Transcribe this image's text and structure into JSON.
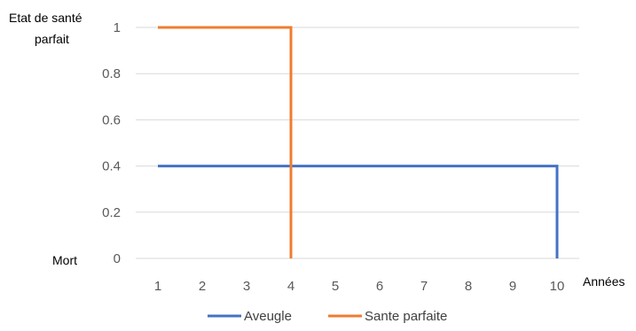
{
  "chart_data": {
    "type": "line",
    "step": true,
    "x": [
      1,
      2,
      3,
      4,
      5,
      6,
      7,
      8,
      9,
      10
    ],
    "x_tick_labels": [
      "1",
      "2",
      "3",
      "4",
      "5",
      "6",
      "7",
      "8",
      "9",
      "10"
    ],
    "y_tick_labels": [
      "0",
      "0.2",
      "0.4",
      "0.6",
      "0.8",
      "1"
    ],
    "y_ticks": [
      0,
      0.2,
      0.4,
      0.6,
      0.8,
      1
    ],
    "ylim": [
      0,
      1
    ],
    "xlabel": "Années",
    "y_top_label_line1": "Etat de santé",
    "y_top_label_line2": "parfait",
    "y_bottom_label": "Mort",
    "grid": true,
    "legend_position": "bottom",
    "series": [
      {
        "name": "Aveugle",
        "color": "#4472C4",
        "points": [
          [
            1,
            0.4
          ],
          [
            10,
            0.4
          ],
          [
            10,
            0
          ]
        ]
      },
      {
        "name": "Sante parfaite",
        "color": "#ED7D31",
        "points": [
          [
            1,
            1
          ],
          [
            4,
            1
          ],
          [
            4,
            0
          ]
        ]
      }
    ]
  }
}
